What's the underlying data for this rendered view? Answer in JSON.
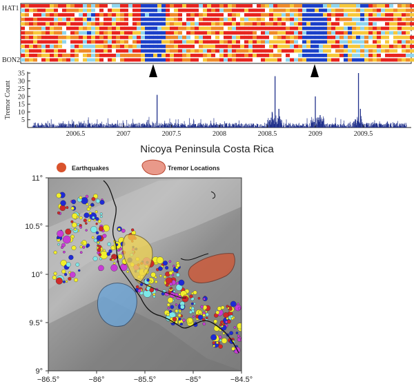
{
  "stations": {
    "top_label": "HAT1",
    "bottom_label": "BON2"
  },
  "chart_data": [
    {
      "type": "heatmap",
      "title": "",
      "xlim": [
        2006.0,
        2010.0
      ],
      "row_labels": [
        "HAT1",
        "BON2"
      ],
      "rows": 13,
      "markers_at": [
        2007.35,
        2009.0
      ],
      "colors": {
        "high": "#e8231e",
        "mid_high": "#f08a28",
        "mid": "#f7c83a",
        "low": "#8fd6ee",
        "lowest": "#1a3fc8",
        "missing": "#ffffff"
      }
    },
    {
      "type": "bar",
      "ylabel": "Tremor Count",
      "xlim": [
        2006.0,
        2010.0
      ],
      "ylim": [
        0,
        35
      ],
      "yticks": [
        "5",
        "10",
        "15",
        "20",
        "25",
        "30",
        "35"
      ],
      "xticks": [
        "2006.5",
        "2007",
        "2007.5",
        "2008",
        "2008.5",
        "2009",
        "2009.5"
      ],
      "bar_color": "#1f2f8a",
      "peaks": [
        {
          "x": 2007.35,
          "y": 21
        },
        {
          "x": 2008.58,
          "y": 33
        },
        {
          "x": 2008.62,
          "y": 12
        },
        {
          "x": 2009.0,
          "y": 20
        },
        {
          "x": 2009.05,
          "y": 8
        },
        {
          "x": 2009.45,
          "y": 35
        },
        {
          "x": 2009.47,
          "y": 12
        },
        {
          "x": 2008.55,
          "y": 10
        }
      ]
    },
    {
      "type": "scatter",
      "title": "Nicoya Peninsula Costa Rica",
      "legend": [
        {
          "label": "Earthquakes",
          "color": "#d9532d"
        },
        {
          "label": "Tremor Locations",
          "color": "#e9998a"
        }
      ],
      "xlim": [
        -86.5,
        -84.5
      ],
      "ylim": [
        9.0,
        11.0
      ],
      "xticks": [
        "−86.5°",
        "−86°",
        "−85.5°",
        "−85°",
        "−84.5°"
      ],
      "yticks": [
        "9°",
        "9.5°",
        "10°",
        "10.5°",
        "11°"
      ],
      "tremor_regions": [
        {
          "name": "",
          "color": "#f0d34f"
        },
        {
          "name": "",
          "color": "#6ea6d8"
        },
        {
          "name": "",
          "color": "#d9532d"
        }
      ],
      "point_colors": [
        "#f2ef2c",
        "#1e2ad6",
        "#d02a2a",
        "#c83cd6",
        "#7ee8e8",
        "#f2ef2c"
      ]
    }
  ]
}
